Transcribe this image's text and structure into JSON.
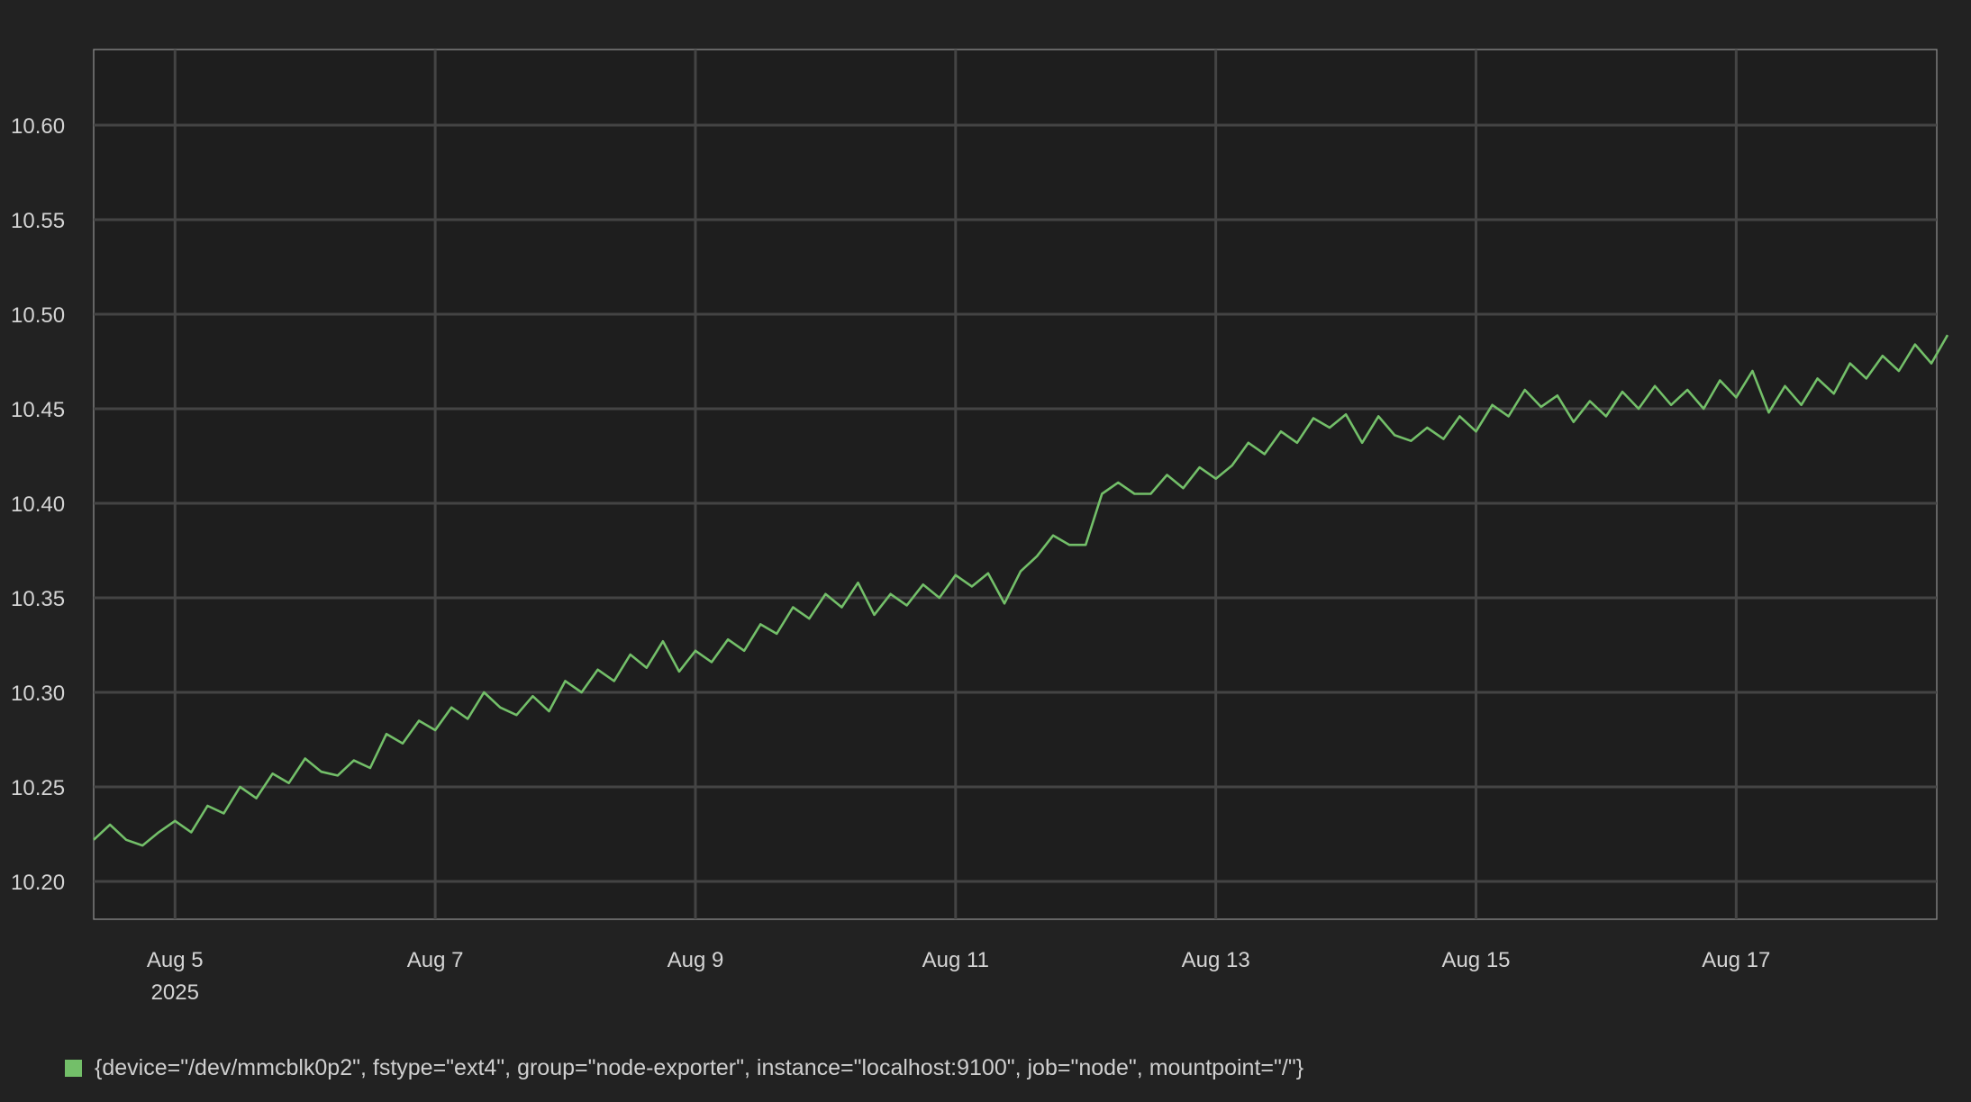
{
  "chart_data": {
    "type": "line",
    "title": "",
    "xlabel": "",
    "ylabel": "",
    "x_start": "2025-08-04T09:00",
    "x_end": "2025-08-18T13:00",
    "ylim": [
      10.18,
      10.64
    ],
    "grid": true,
    "x_ticks": [
      {
        "date": "2025-08-05",
        "label": "Aug 5",
        "sublabel": "2025"
      },
      {
        "date": "2025-08-07",
        "label": "Aug 7",
        "sublabel": ""
      },
      {
        "date": "2025-08-09",
        "label": "Aug 9",
        "sublabel": ""
      },
      {
        "date": "2025-08-11",
        "label": "Aug 11",
        "sublabel": ""
      },
      {
        "date": "2025-08-13",
        "label": "Aug 13",
        "sublabel": ""
      },
      {
        "date": "2025-08-15",
        "label": "Aug 15",
        "sublabel": ""
      },
      {
        "date": "2025-08-17",
        "label": "Aug 17",
        "sublabel": ""
      }
    ],
    "y_ticks": [
      {
        "value": 10.2,
        "label": "10.20"
      },
      {
        "value": 10.25,
        "label": "10.25"
      },
      {
        "value": 10.3,
        "label": "10.30"
      },
      {
        "value": 10.35,
        "label": "10.35"
      },
      {
        "value": 10.4,
        "label": "10.40"
      },
      {
        "value": 10.45,
        "label": "10.45"
      },
      {
        "value": 10.5,
        "label": "10.50"
      },
      {
        "value": 10.55,
        "label": "10.55"
      },
      {
        "value": 10.6,
        "label": "10.60"
      }
    ],
    "series": [
      {
        "name": "{device=\"/dev/mmcblk0p2\", fstype=\"ext4\", group=\"node-exporter\", instance=\"localhost:9100\", job=\"node\", mountpoint=\"/\"}",
        "color": "#73bf69",
        "points": [
          [
            "2025-08-04T09:00",
            10.222
          ],
          [
            "2025-08-04T12:00",
            10.23
          ],
          [
            "2025-08-04T15:00",
            10.222
          ],
          [
            "2025-08-04T18:00",
            10.219
          ],
          [
            "2025-08-04T21:00",
            10.226
          ],
          [
            "2025-08-05T00:00",
            10.232
          ],
          [
            "2025-08-05T03:00",
            10.226
          ],
          [
            "2025-08-05T06:00",
            10.24
          ],
          [
            "2025-08-05T09:00",
            10.236
          ],
          [
            "2025-08-05T12:00",
            10.25
          ],
          [
            "2025-08-05T15:00",
            10.244
          ],
          [
            "2025-08-05T18:00",
            10.257
          ],
          [
            "2025-08-05T21:00",
            10.252
          ],
          [
            "2025-08-06T00:00",
            10.265
          ],
          [
            "2025-08-06T03:00",
            10.258
          ],
          [
            "2025-08-06T06:00",
            10.256
          ],
          [
            "2025-08-06T09:00",
            10.264
          ],
          [
            "2025-08-06T12:00",
            10.26
          ],
          [
            "2025-08-06T15:00",
            10.278
          ],
          [
            "2025-08-06T18:00",
            10.273
          ],
          [
            "2025-08-06T21:00",
            10.285
          ],
          [
            "2025-08-07T00:00",
            10.28
          ],
          [
            "2025-08-07T03:00",
            10.292
          ],
          [
            "2025-08-07T06:00",
            10.286
          ],
          [
            "2025-08-07T09:00",
            10.3
          ],
          [
            "2025-08-07T12:00",
            10.292
          ],
          [
            "2025-08-07T15:00",
            10.288
          ],
          [
            "2025-08-07T18:00",
            10.298
          ],
          [
            "2025-08-07T21:00",
            10.29
          ],
          [
            "2025-08-08T00:00",
            10.306
          ],
          [
            "2025-08-08T03:00",
            10.3
          ],
          [
            "2025-08-08T06:00",
            10.312
          ],
          [
            "2025-08-08T09:00",
            10.306
          ],
          [
            "2025-08-08T12:00",
            10.32
          ],
          [
            "2025-08-08T15:00",
            10.313
          ],
          [
            "2025-08-08T18:00",
            10.327
          ],
          [
            "2025-08-08T21:00",
            10.311
          ],
          [
            "2025-08-09T00:00",
            10.322
          ],
          [
            "2025-08-09T03:00",
            10.316
          ],
          [
            "2025-08-09T06:00",
            10.328
          ],
          [
            "2025-08-09T09:00",
            10.322
          ],
          [
            "2025-08-09T12:00",
            10.336
          ],
          [
            "2025-08-09T15:00",
            10.331
          ],
          [
            "2025-08-09T18:00",
            10.345
          ],
          [
            "2025-08-09T21:00",
            10.339
          ],
          [
            "2025-08-10T00:00",
            10.352
          ],
          [
            "2025-08-10T03:00",
            10.345
          ],
          [
            "2025-08-10T06:00",
            10.358
          ],
          [
            "2025-08-10T09:00",
            10.341
          ],
          [
            "2025-08-10T12:00",
            10.352
          ],
          [
            "2025-08-10T15:00",
            10.346
          ],
          [
            "2025-08-10T18:00",
            10.357
          ],
          [
            "2025-08-10T21:00",
            10.35
          ],
          [
            "2025-08-11T00:00",
            10.362
          ],
          [
            "2025-08-11T03:00",
            10.356
          ],
          [
            "2025-08-11T06:00",
            10.363
          ],
          [
            "2025-08-11T09:00",
            10.347
          ],
          [
            "2025-08-11T12:00",
            10.364
          ],
          [
            "2025-08-11T15:00",
            10.372
          ],
          [
            "2025-08-11T18:00",
            10.383
          ],
          [
            "2025-08-11T21:00",
            10.378
          ],
          [
            "2025-08-12T00:00",
            10.378
          ],
          [
            "2025-08-12T03:00",
            10.405
          ],
          [
            "2025-08-12T06:00",
            10.411
          ],
          [
            "2025-08-12T09:00",
            10.405
          ],
          [
            "2025-08-12T12:00",
            10.405
          ],
          [
            "2025-08-12T15:00",
            10.415
          ],
          [
            "2025-08-12T18:00",
            10.408
          ],
          [
            "2025-08-12T21:00",
            10.419
          ],
          [
            "2025-08-13T00:00",
            10.413
          ],
          [
            "2025-08-13T03:00",
            10.42
          ],
          [
            "2025-08-13T06:00",
            10.432
          ],
          [
            "2025-08-13T09:00",
            10.426
          ],
          [
            "2025-08-13T12:00",
            10.438
          ],
          [
            "2025-08-13T15:00",
            10.432
          ],
          [
            "2025-08-13T18:00",
            10.445
          ],
          [
            "2025-08-13T21:00",
            10.44
          ],
          [
            "2025-08-14T00:00",
            10.447
          ],
          [
            "2025-08-14T03:00",
            10.432
          ],
          [
            "2025-08-14T06:00",
            10.446
          ],
          [
            "2025-08-14T09:00",
            10.436
          ],
          [
            "2025-08-14T12:00",
            10.433
          ],
          [
            "2025-08-14T15:00",
            10.44
          ],
          [
            "2025-08-14T18:00",
            10.434
          ],
          [
            "2025-08-14T21:00",
            10.446
          ],
          [
            "2025-08-15T00:00",
            10.438
          ],
          [
            "2025-08-15T03:00",
            10.452
          ],
          [
            "2025-08-15T06:00",
            10.446
          ],
          [
            "2025-08-15T09:00",
            10.46
          ],
          [
            "2025-08-15T12:00",
            10.451
          ],
          [
            "2025-08-15T15:00",
            10.457
          ],
          [
            "2025-08-15T18:00",
            10.443
          ],
          [
            "2025-08-15T21:00",
            10.454
          ],
          [
            "2025-08-16T00:00",
            10.446
          ],
          [
            "2025-08-16T03:00",
            10.459
          ],
          [
            "2025-08-16T06:00",
            10.45
          ],
          [
            "2025-08-16T09:00",
            10.462
          ],
          [
            "2025-08-16T12:00",
            10.452
          ],
          [
            "2025-08-16T15:00",
            10.46
          ],
          [
            "2025-08-16T18:00",
            10.45
          ],
          [
            "2025-08-16T21:00",
            10.465
          ],
          [
            "2025-08-17T00:00",
            10.456
          ],
          [
            "2025-08-17T03:00",
            10.47
          ],
          [
            "2025-08-17T06:00",
            10.448
          ],
          [
            "2025-08-17T09:00",
            10.462
          ],
          [
            "2025-08-17T12:00",
            10.452
          ],
          [
            "2025-08-17T15:00",
            10.466
          ],
          [
            "2025-08-17T18:00",
            10.458
          ],
          [
            "2025-08-17T21:00",
            10.474
          ],
          [
            "2025-08-18T00:00",
            10.466
          ],
          [
            "2025-08-18T03:00",
            10.478
          ],
          [
            "2025-08-18T06:00",
            10.47
          ],
          [
            "2025-08-18T09:00",
            10.484
          ],
          [
            "2025-08-18T12:00",
            10.474
          ],
          [
            "2025-08-18T15:00",
            10.489
          ]
        ]
      }
    ]
  }
}
